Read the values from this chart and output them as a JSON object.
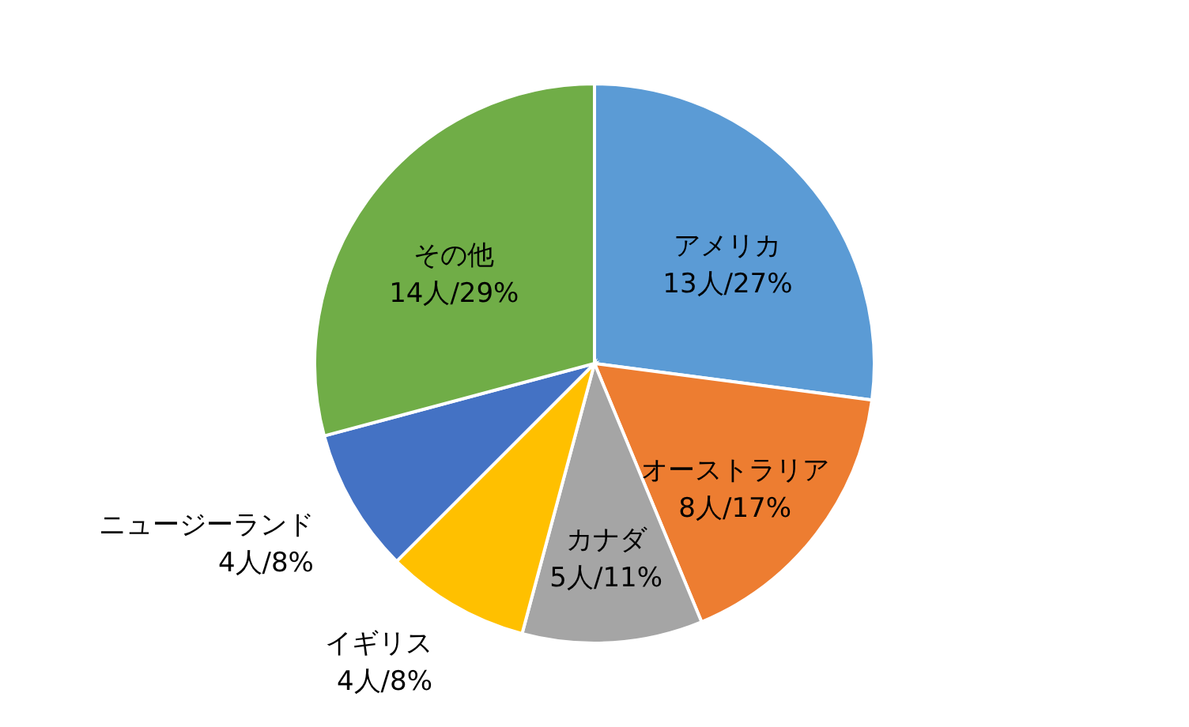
{
  "chart_data": {
    "type": "pie",
    "categories": [
      "アメリカ",
      "オーストラリア",
      "カナダ",
      "イギリス",
      "ニュージーランド",
      "その他"
    ],
    "values": [
      13,
      8,
      5,
      4,
      4,
      14
    ],
    "value_labels": [
      "13人/27%",
      "8人/17%",
      "5人/11%",
      "4人/8%",
      "4人/8%",
      "14人/29%"
    ],
    "colors": [
      "#5b9bd5",
      "#ed7d31",
      "#a5a5a5",
      "#ffc000",
      "#4472c4",
      "#70ad47"
    ]
  }
}
